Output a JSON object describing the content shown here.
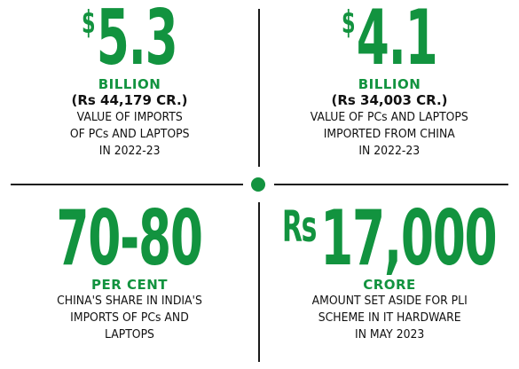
{
  "colors": {
    "green": "#12933f",
    "text": "#111111",
    "line": "#1a1a1a"
  },
  "stats": [
    {
      "symbol": "$",
      "value": "5.3",
      "unit": "BILLION",
      "inr": "(Rs 44,179 CR.)",
      "desc": [
        "VALUE OF IMPORTS",
        "OF PCs AND LAPTOPS",
        "IN 2022-23"
      ]
    },
    {
      "symbol": "$",
      "value": "4.1",
      "unit": "BILLION",
      "inr": "(Rs 34,003 CR.)",
      "desc": [
        "VALUE OF PCs AND LAPTOPS",
        "IMPORTED FROM CHINA",
        "IN 2022-23"
      ]
    },
    {
      "symbol": "",
      "value": "70-80",
      "unit": "PER CENT",
      "inr": "",
      "desc": [
        "CHINA'S SHARE IN INDIA'S",
        "IMPORTS OF PCs AND",
        "LAPTOPS"
      ]
    },
    {
      "symbol": "Rs",
      "value": "17,000",
      "unit": "CRORE",
      "inr": "",
      "desc": [
        "AMOUNT SET ASIDE FOR PLI",
        "SCHEME IN IT HARDWARE",
        "IN MAY 2023"
      ]
    }
  ]
}
